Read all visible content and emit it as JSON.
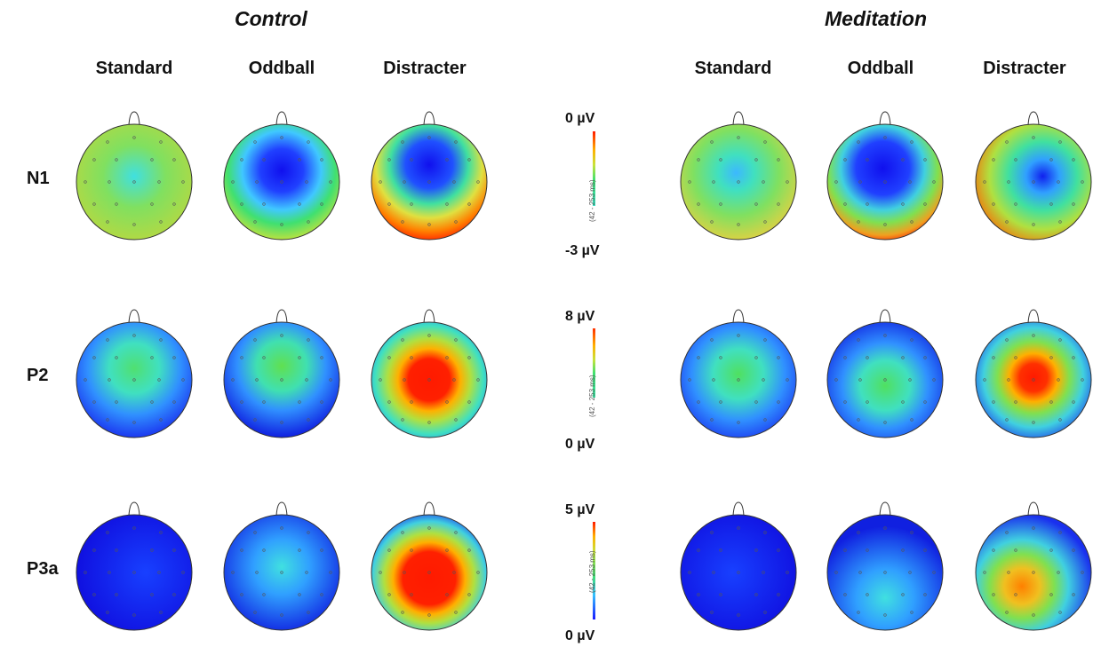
{
  "groups": {
    "control": "Control",
    "meditation": "Meditation"
  },
  "conditions": [
    "Standard",
    "Oddball",
    "Distracter"
  ],
  "rows": [
    {
      "label": "N1",
      "scale_top": "0 µV",
      "scale_bottom": "-3 µV"
    },
    {
      "label": "P2",
      "scale_top": "8 µV",
      "scale_bottom": "0 µV"
    },
    {
      "label": "P3a",
      "scale_top": "5 µV",
      "scale_bottom": "0 µV"
    }
  ],
  "colors": {
    "low": "#1a1aff",
    "mid_low": "#35c0ff",
    "mid": "#40e070",
    "mid_high": "#c9e23a",
    "high": "#ff1a00"
  }
}
